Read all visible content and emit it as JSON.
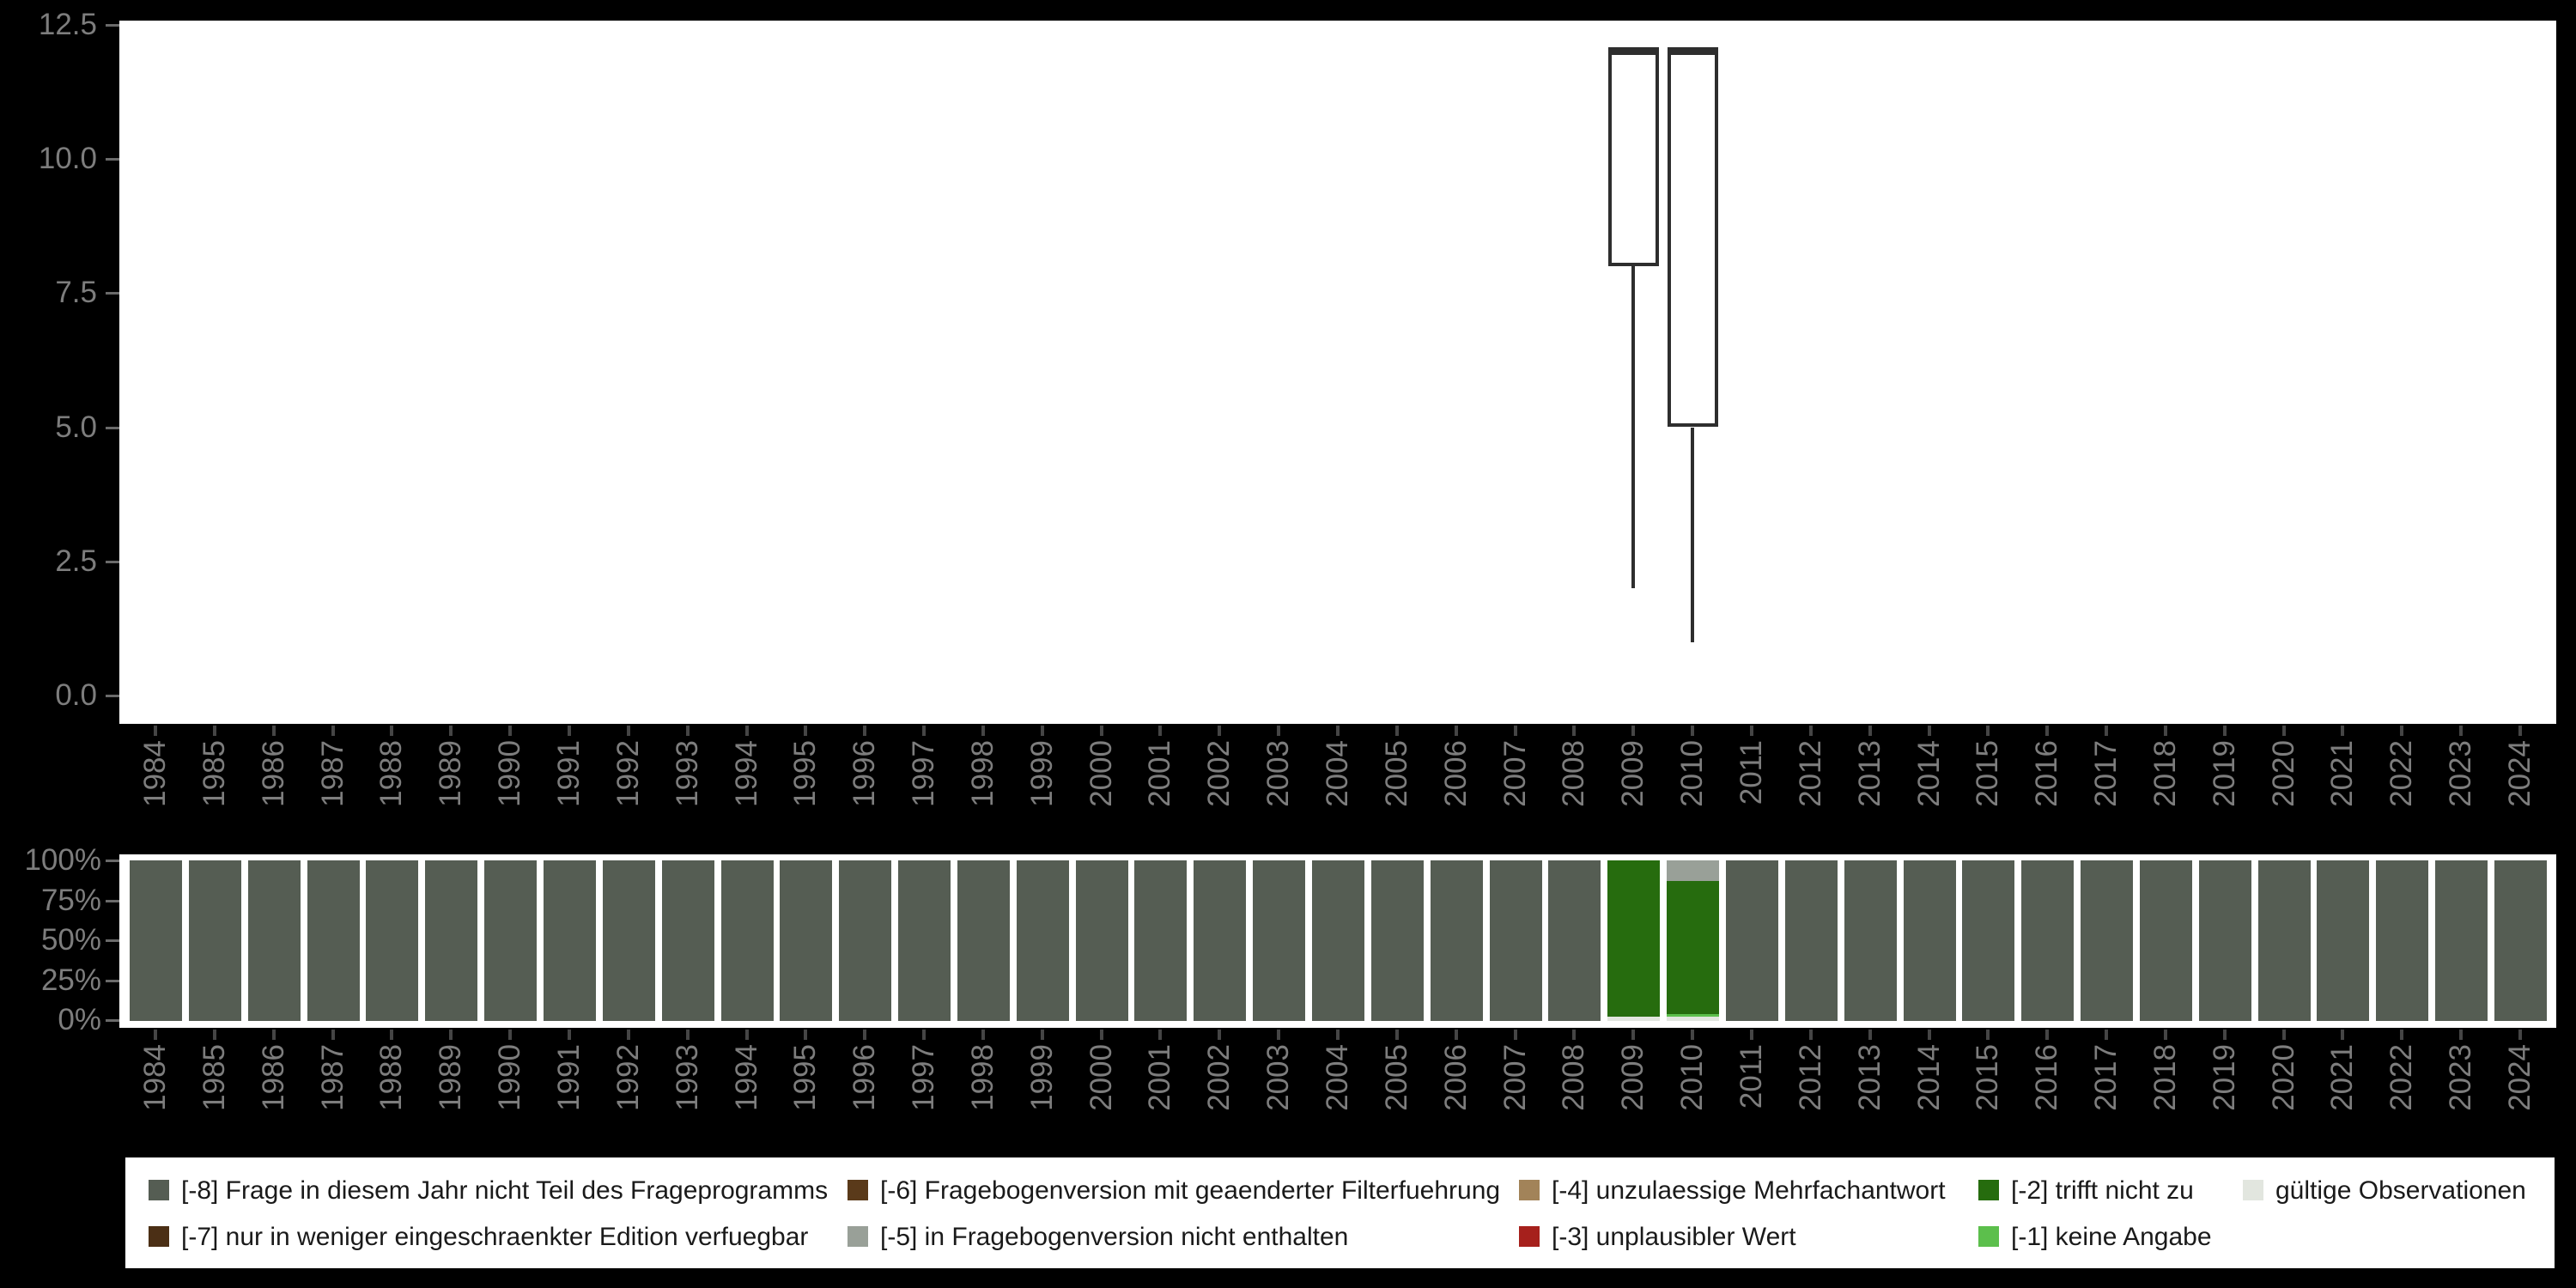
{
  "years": [
    "1984",
    "1985",
    "1986",
    "1987",
    "1988",
    "1989",
    "1990",
    "1991",
    "1992",
    "1993",
    "1994",
    "1995",
    "1996",
    "1997",
    "1998",
    "1999",
    "2000",
    "2001",
    "2002",
    "2003",
    "2004",
    "2005",
    "2006",
    "2007",
    "2008",
    "2009",
    "2010",
    "2011",
    "2012",
    "2013",
    "2014",
    "2015",
    "2016",
    "2017",
    "2018",
    "2019",
    "2020",
    "2021",
    "2022",
    "2023",
    "2024"
  ],
  "chart_data": [
    {
      "type": "boxplot",
      "title": "",
      "xlabel": "",
      "ylabel": "",
      "x_categories": [
        "1984",
        "1985",
        "1986",
        "1987",
        "1988",
        "1989",
        "1990",
        "1991",
        "1992",
        "1993",
        "1994",
        "1995",
        "1996",
        "1997",
        "1998",
        "1999",
        "2000",
        "2001",
        "2002",
        "2003",
        "2004",
        "2005",
        "2006",
        "2007",
        "2008",
        "2009",
        "2010",
        "2011",
        "2012",
        "2013",
        "2014",
        "2015",
        "2016",
        "2017",
        "2018",
        "2019",
        "2020",
        "2021",
        "2022",
        "2023",
        "2024"
      ],
      "ylim": [
        0,
        12.5
      ],
      "ytick_labels": [
        "0.0",
        "2.5",
        "5.0",
        "7.5",
        "10.0",
        "12.5"
      ],
      "grid": false,
      "boxes": [
        {
          "year": "2009",
          "whisker_low": 2,
          "q1": 8,
          "median": 12,
          "q3": 12,
          "whisker_high": 12
        },
        {
          "year": "2010",
          "whisker_low": 1,
          "q1": 5,
          "median": 12,
          "q3": 12,
          "whisker_high": 12
        }
      ]
    },
    {
      "type": "bar",
      "stacked": true,
      "unit": "percent",
      "title": "",
      "xlabel": "",
      "ylabel": "",
      "categories": [
        "1984",
        "1985",
        "1986",
        "1987",
        "1988",
        "1989",
        "1990",
        "1991",
        "1992",
        "1993",
        "1994",
        "1995",
        "1996",
        "1997",
        "1998",
        "1999",
        "2000",
        "2001",
        "2002",
        "2003",
        "2004",
        "2005",
        "2006",
        "2007",
        "2008",
        "2009",
        "2010",
        "2011",
        "2012",
        "2013",
        "2014",
        "2015",
        "2016",
        "2017",
        "2018",
        "2019",
        "2020",
        "2021",
        "2022",
        "2023",
        "2024"
      ],
      "ytick_labels": [
        "100%",
        "75%",
        "50%",
        "25%",
        "0%"
      ],
      "ylim": [
        0,
        100
      ],
      "default_stack_top_to_bottom": [
        {
          "code": "-8",
          "pct": 100
        }
      ],
      "stacks_by_year_top_to_bottom": {
        "2009": [
          {
            "code": "-2",
            "pct": 97.3
          },
          {
            "code": "valid",
            "pct": 2.7
          }
        ],
        "2010": [
          {
            "code": "-5",
            "pct": 12.8
          },
          {
            "code": "-2",
            "pct": 83.0
          },
          {
            "code": "-1",
            "pct": 1.6
          },
          {
            "code": "valid",
            "pct": 2.6
          }
        ]
      }
    }
  ],
  "legend": {
    "colors": {
      "-8": "#555d53",
      "-7": "#4b2f15",
      "-6": "#5a3a1a",
      "-5": "#99a098",
      "-4": "#a28359",
      "-3": "#a6201c",
      "-2": "#266c0e",
      "-1": "#5cbf4c",
      "valid": "#e2e6df"
    },
    "items": [
      {
        "code": "-8",
        "label": "[-8] Frage in diesem Jahr nicht Teil des Frageprogramms",
        "col": 0,
        "row": 0
      },
      {
        "code": "-7",
        "label": "[-7] nur in weniger eingeschraenkter Edition verfuegbar",
        "col": 0,
        "row": 1
      },
      {
        "code": "-6",
        "label": "[-6] Fragebogenversion mit geaenderter Filterfuehrung",
        "col": 1,
        "row": 0
      },
      {
        "code": "-5",
        "label": "[-5] in Fragebogenversion nicht enthalten",
        "col": 1,
        "row": 1
      },
      {
        "code": "-4",
        "label": "[-4] unzulaessige Mehrfachantwort",
        "col": 2,
        "row": 0
      },
      {
        "code": "-3",
        "label": "[-3] unplausibler Wert",
        "col": 2,
        "row": 1
      },
      {
        "code": "-2",
        "label": "[-2] trifft nicht zu",
        "col": 3,
        "row": 0
      },
      {
        "code": "-1",
        "label": "[-1] keine Angabe",
        "col": 3,
        "row": 1
      },
      {
        "code": "valid",
        "label": "gültige Observationen",
        "col": 4,
        "row": 0
      }
    ]
  },
  "style": {
    "background": "#000000",
    "plot_background": "#ffffff",
    "axis_label_color": "#7d7d7d",
    "box_line_color": "#2e2e2e"
  }
}
